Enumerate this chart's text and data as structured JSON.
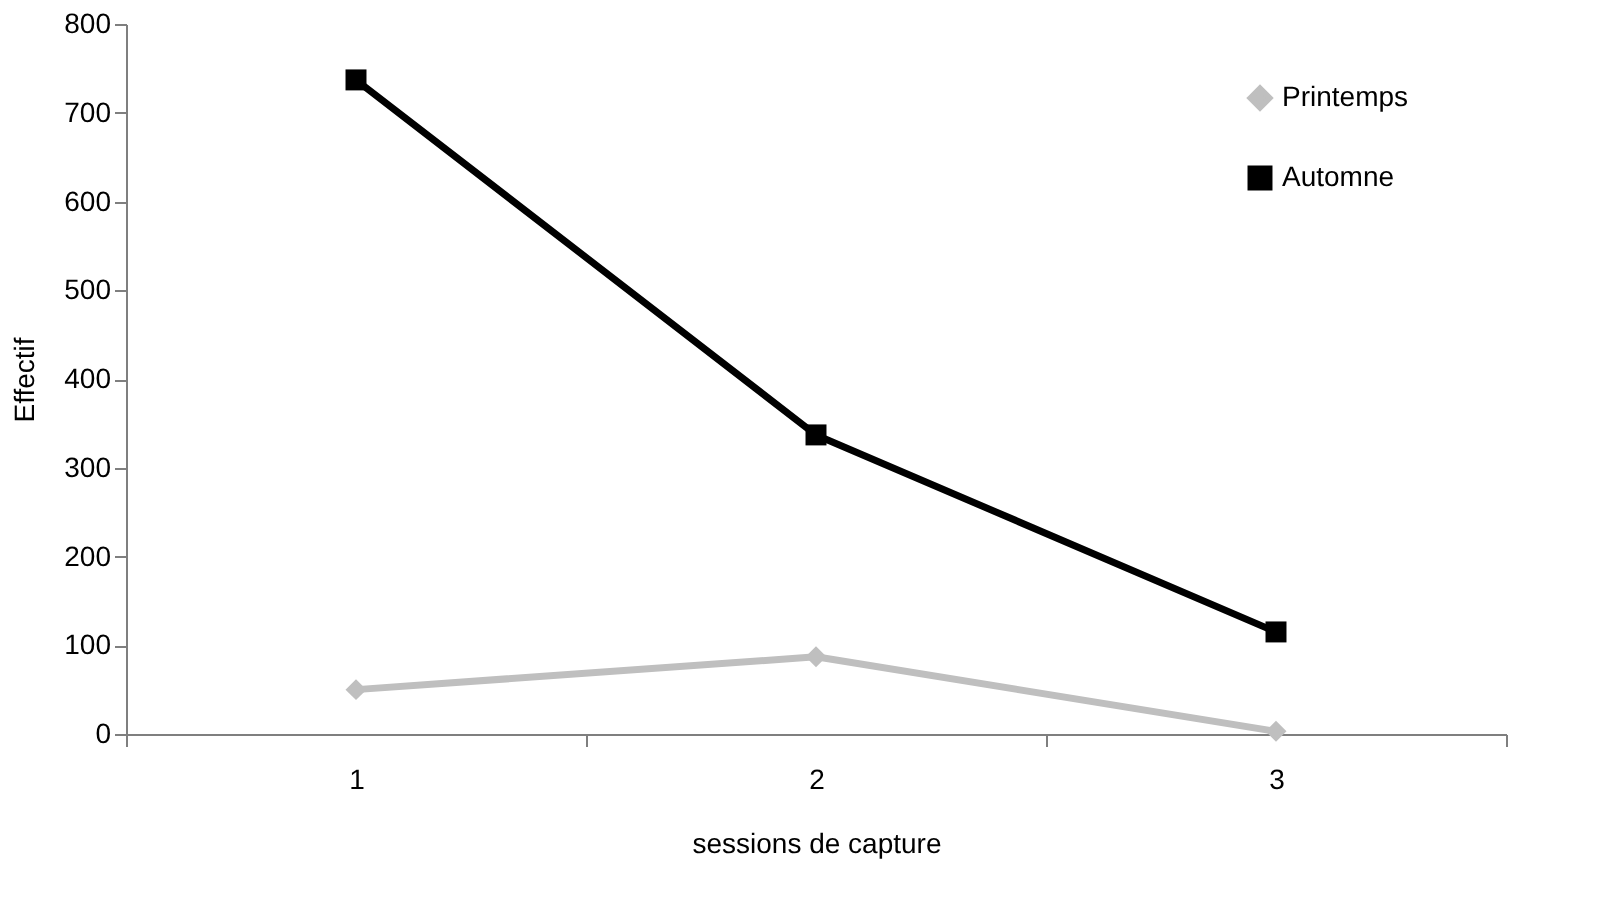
{
  "chart_data": {
    "type": "line",
    "xlabel": "sessions de capture",
    "ylabel": "Effectif",
    "categories": [
      "1",
      "2",
      "3"
    ],
    "series": [
      {
        "name": "Printemps",
        "color": "#bfbfbf",
        "marker": "diamond",
        "values": [
          50,
          87,
          3
        ]
      },
      {
        "name": "Automne",
        "color": "#000000",
        "marker": "square",
        "values": [
          737,
          337,
          115
        ]
      }
    ],
    "ylim": [
      0,
      800
    ],
    "yticks": [
      0,
      100,
      200,
      300,
      400,
      500,
      600,
      700,
      800
    ],
    "grid": false,
    "legend": "top right",
    "line_style": "solid"
  }
}
